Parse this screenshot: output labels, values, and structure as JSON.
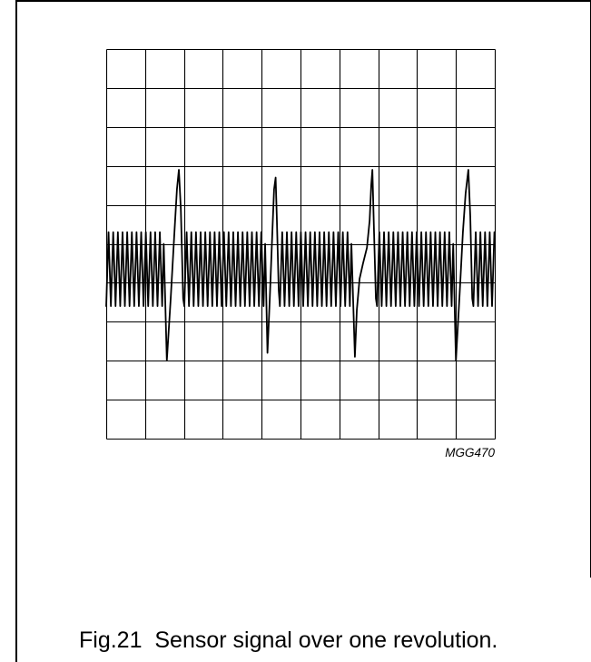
{
  "figure": {
    "code": "MGG470",
    "caption": "Fig.21  Sensor signal over one revolution."
  },
  "colors": {
    "trace": "#000000",
    "grid": "#000000",
    "background": "#ffffff"
  },
  "chart_data": {
    "type": "line",
    "grid": true,
    "x_divisions": 10,
    "y_divisions": 10,
    "xlim": [
      0,
      10
    ],
    "ylim": [
      0,
      10
    ],
    "series": [
      {
        "points": [
          [
            0.0,
            3.4
          ],
          [
            0.06,
            5.3
          ],
          [
            0.12,
            3.4
          ],
          [
            0.18,
            5.3
          ],
          [
            0.24,
            3.4
          ],
          [
            0.3,
            5.3
          ],
          [
            0.36,
            3.4
          ],
          [
            0.42,
            5.3
          ],
          [
            0.48,
            3.4
          ],
          [
            0.54,
            5.3
          ],
          [
            0.6,
            3.4
          ],
          [
            0.66,
            5.3
          ],
          [
            0.72,
            3.4
          ],
          [
            0.78,
            5.3
          ],
          [
            0.84,
            3.4
          ],
          [
            0.9,
            5.3
          ],
          [
            0.96,
            3.4
          ],
          [
            1.02,
            5.3
          ],
          [
            1.08,
            3.4
          ],
          [
            1.14,
            5.3
          ],
          [
            1.2,
            3.4
          ],
          [
            1.26,
            5.3
          ],
          [
            1.32,
            3.4
          ],
          [
            1.38,
            5.3
          ],
          [
            1.44,
            3.4
          ],
          [
            1.48,
            5.0
          ],
          [
            1.56,
            2.0
          ],
          [
            1.66,
            3.6
          ],
          [
            1.75,
            5.2
          ],
          [
            1.82,
            6.4
          ],
          [
            1.87,
            6.9
          ],
          [
            1.92,
            5.9
          ],
          [
            1.98,
            3.6
          ],
          [
            2.01,
            3.4
          ],
          [
            2.07,
            5.3
          ],
          [
            2.13,
            3.4
          ],
          [
            2.19,
            5.3
          ],
          [
            2.25,
            3.4
          ],
          [
            2.31,
            5.3
          ],
          [
            2.37,
            3.4
          ],
          [
            2.43,
            5.3
          ],
          [
            2.49,
            3.4
          ],
          [
            2.55,
            5.3
          ],
          [
            2.61,
            3.4
          ],
          [
            2.67,
            5.3
          ],
          [
            2.73,
            3.4
          ],
          [
            2.79,
            5.3
          ],
          [
            2.85,
            3.4
          ],
          [
            2.91,
            5.3
          ],
          [
            2.97,
            3.4
          ],
          [
            3.03,
            5.3
          ],
          [
            3.09,
            3.4
          ],
          [
            3.15,
            5.3
          ],
          [
            3.21,
            3.4
          ],
          [
            3.27,
            5.3
          ],
          [
            3.33,
            3.4
          ],
          [
            3.39,
            5.3
          ],
          [
            3.45,
            3.4
          ],
          [
            3.51,
            5.3
          ],
          [
            3.57,
            3.4
          ],
          [
            3.63,
            5.3
          ],
          [
            3.69,
            3.4
          ],
          [
            3.75,
            5.3
          ],
          [
            3.81,
            3.4
          ],
          [
            3.87,
            5.3
          ],
          [
            3.93,
            3.4
          ],
          [
            3.99,
            5.3
          ],
          [
            4.05,
            3.4
          ],
          [
            4.09,
            5.0
          ],
          [
            4.15,
            2.2
          ],
          [
            4.21,
            3.6
          ],
          [
            4.28,
            5.4
          ],
          [
            4.32,
            6.4
          ],
          [
            4.36,
            6.7
          ],
          [
            4.39,
            5.7
          ],
          [
            4.44,
            3.8
          ],
          [
            4.47,
            3.4
          ],
          [
            4.53,
            5.3
          ],
          [
            4.59,
            3.4
          ],
          [
            4.65,
            5.3
          ],
          [
            4.71,
            3.4
          ],
          [
            4.77,
            5.3
          ],
          [
            4.83,
            3.4
          ],
          [
            4.89,
            5.3
          ],
          [
            4.95,
            3.4
          ],
          [
            5.01,
            5.3
          ],
          [
            5.07,
            3.4
          ],
          [
            5.13,
            5.3
          ],
          [
            5.19,
            3.4
          ],
          [
            5.25,
            5.3
          ],
          [
            5.31,
            3.4
          ],
          [
            5.37,
            5.3
          ],
          [
            5.43,
            3.4
          ],
          [
            5.49,
            5.3
          ],
          [
            5.55,
            3.4
          ],
          [
            5.61,
            5.3
          ],
          [
            5.67,
            3.4
          ],
          [
            5.73,
            5.3
          ],
          [
            5.79,
            3.4
          ],
          [
            5.85,
            5.3
          ],
          [
            5.91,
            3.4
          ],
          [
            5.97,
            5.3
          ],
          [
            6.03,
            3.4
          ],
          [
            6.09,
            5.3
          ],
          [
            6.15,
            3.4
          ],
          [
            6.21,
            5.3
          ],
          [
            6.27,
            3.4
          ],
          [
            6.31,
            5.0
          ],
          [
            6.4,
            2.1
          ],
          [
            6.45,
            3.3
          ],
          [
            6.52,
            4.1
          ],
          [
            6.61,
            4.5
          ],
          [
            6.71,
            4.9
          ],
          [
            6.78,
            5.6
          ],
          [
            6.82,
            6.5
          ],
          [
            6.85,
            6.9
          ],
          [
            6.89,
            5.4
          ],
          [
            6.94,
            3.6
          ],
          [
            6.97,
            3.4
          ],
          [
            7.03,
            5.3
          ],
          [
            7.09,
            3.4
          ],
          [
            7.15,
            5.3
          ],
          [
            7.21,
            3.4
          ],
          [
            7.27,
            5.3
          ],
          [
            7.33,
            3.4
          ],
          [
            7.39,
            5.3
          ],
          [
            7.45,
            3.4
          ],
          [
            7.51,
            5.3
          ],
          [
            7.57,
            3.4
          ],
          [
            7.63,
            5.3
          ],
          [
            7.69,
            3.4
          ],
          [
            7.75,
            5.3
          ],
          [
            7.81,
            3.4
          ],
          [
            7.87,
            5.3
          ],
          [
            7.93,
            3.4
          ],
          [
            7.99,
            5.3
          ],
          [
            8.05,
            3.4
          ],
          [
            8.11,
            5.3
          ],
          [
            8.17,
            3.4
          ],
          [
            8.23,
            5.3
          ],
          [
            8.29,
            3.4
          ],
          [
            8.35,
            5.3
          ],
          [
            8.41,
            3.4
          ],
          [
            8.47,
            5.3
          ],
          [
            8.53,
            3.4
          ],
          [
            8.59,
            5.3
          ],
          [
            8.65,
            3.4
          ],
          [
            8.71,
            5.3
          ],
          [
            8.77,
            3.4
          ],
          [
            8.83,
            5.3
          ],
          [
            8.89,
            3.4
          ],
          [
            8.93,
            5.0
          ],
          [
            9.0,
            2.0
          ],
          [
            9.09,
            3.6
          ],
          [
            9.18,
            5.3
          ],
          [
            9.25,
            6.3
          ],
          [
            9.32,
            6.9
          ],
          [
            9.37,
            5.7
          ],
          [
            9.42,
            3.6
          ],
          [
            9.45,
            3.4
          ],
          [
            9.51,
            5.3
          ],
          [
            9.57,
            3.4
          ],
          [
            9.63,
            5.3
          ],
          [
            9.69,
            3.4
          ],
          [
            9.75,
            5.3
          ],
          [
            9.81,
            3.4
          ],
          [
            9.87,
            5.3
          ],
          [
            9.93,
            3.4
          ],
          [
            9.99,
            5.3
          ]
        ]
      }
    ]
  }
}
